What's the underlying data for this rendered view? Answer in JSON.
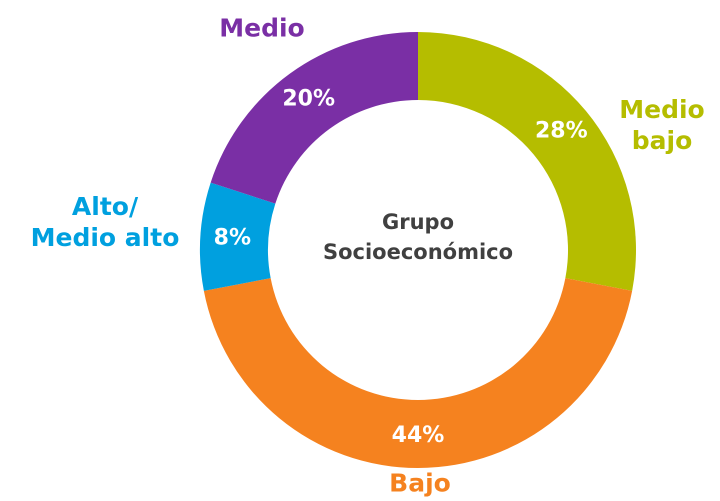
{
  "chart_data": {
    "type": "donut",
    "center_label": "Grupo\nSocioeconómico",
    "categories": [
      "Medio\nbajo",
      "Bajo",
      "Alto/\nMedio alto",
      "Medio"
    ],
    "values": [
      28,
      44,
      8,
      20
    ],
    "value_labels": [
      "28%",
      "44%",
      "8%",
      "20%"
    ],
    "colors": [
      "#b5bd00",
      "#f5821f",
      "#00a0df",
      "#7a2fa5"
    ]
  }
}
